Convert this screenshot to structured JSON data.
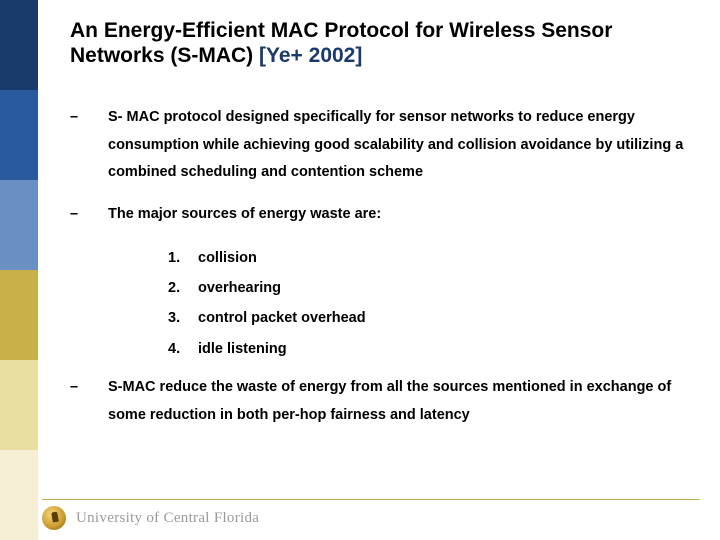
{
  "sidebar_colors": [
    "#193a6b",
    "#2a5a9e",
    "#6a8fc2",
    "#c9b14a",
    "#e8dfa0",
    "#f5f0d5"
  ],
  "title": {
    "main": "An Energy-Efficient MAC Protocol for Wireless Sensor Networks (S-MAC) ",
    "ref": "[Ye+ 2002]",
    "ref_color": "#193a6b",
    "fontsize": 21
  },
  "bullets": [
    {
      "dash": "–",
      "text": "S- MAC protocol designed specifically for sensor networks to reduce energy consumption while achieving good scalability and collision avoidance by utilizing a combined scheduling and contention scheme"
    },
    {
      "dash": "–",
      "text": "The major sources of energy waste are:",
      "numbered": [
        {
          "n": "1.",
          "t": "collision"
        },
        {
          "n": "2.",
          "t": "overhearing"
        },
        {
          "n": "3.",
          "t": "control packet overhead"
        },
        {
          "n": "4.",
          "t": "idle listening"
        }
      ]
    },
    {
      "dash": "–",
      "text": "S-MAC reduce the waste of energy from all the sources mentioned in exchange of some reduction in both per-hop fairness and latency"
    }
  ],
  "footer": {
    "university": "University of Central Florida",
    "line_color": "#c9b14a",
    "text_color": "#9a9a9a"
  }
}
